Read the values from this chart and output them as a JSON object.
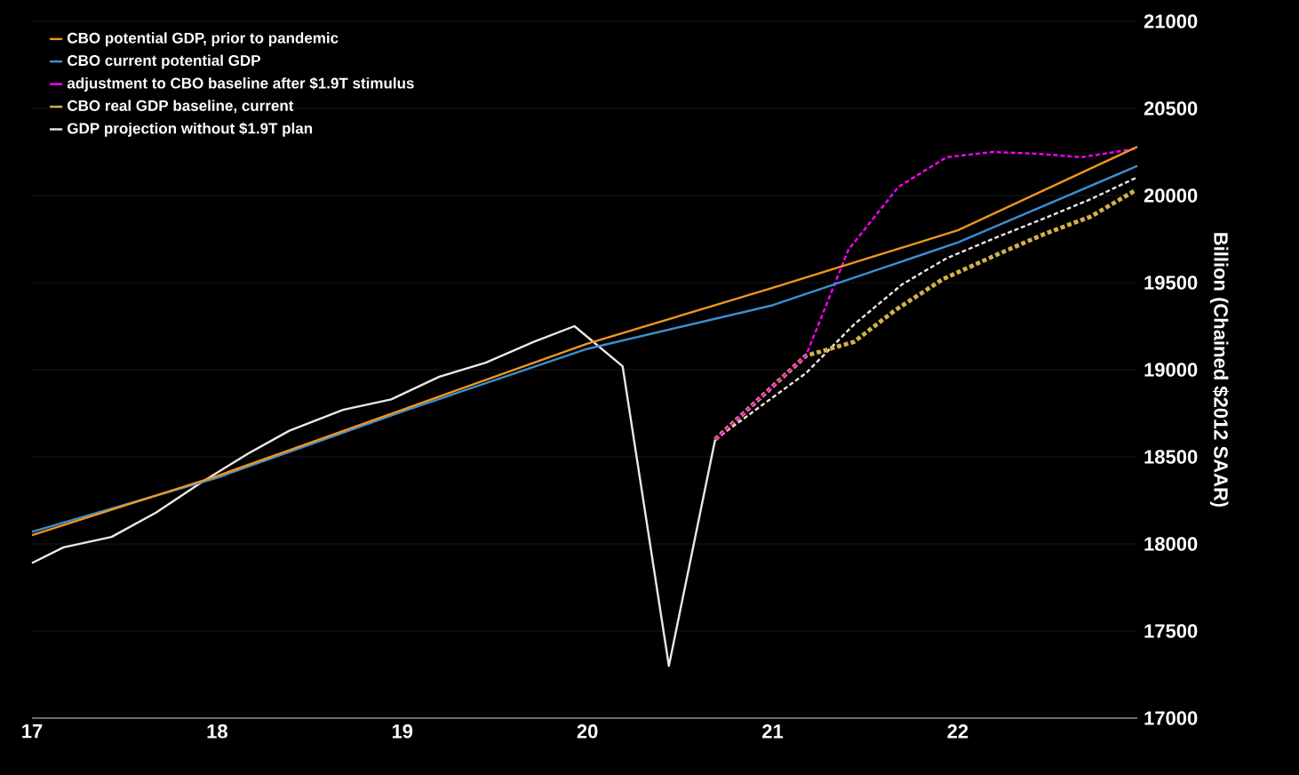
{
  "chart_data": {
    "type": "line",
    "ylabel": "Billion (Chained $2012 SAAR)",
    "xlim": [
      17,
      22.97
    ],
    "xticks": [
      17,
      18,
      19,
      20,
      21,
      22
    ],
    "ylim": [
      17000,
      21000
    ],
    "yticks": [
      17000,
      17500,
      18000,
      18500,
      19000,
      19500,
      20000,
      20500,
      21000
    ],
    "grid": "y",
    "legend": "top left",
    "line_style": "solid",
    "series": [
      {
        "name": "CBO potential GDP, prior to pandemic",
        "color": "#f0961e",
        "x": [
          17,
          18,
          19,
          20,
          21,
          22,
          22.97
        ],
        "values": [
          18050,
          18390,
          18770,
          19150,
          19470,
          19800,
          20280
        ]
      },
      {
        "name": "CBO current potential GDP",
        "color": "#3d8fd1",
        "x": [
          17,
          18,
          19,
          20,
          21,
          22,
          22.97
        ],
        "values": [
          18070,
          18380,
          18760,
          19120,
          19370,
          19730,
          20170
        ]
      },
      {
        "name": "adjustment to CBO baseline after $1.9T stimulus",
        "color": "#ff00ff",
        "line_style": "dashed",
        "x": [
          20.69,
          21.18,
          21.41,
          21.68,
          21.94,
          22.19,
          22.43,
          22.67,
          22.97
        ],
        "values": [
          18600,
          19080,
          19690,
          20050,
          20220,
          20250,
          20240,
          20220,
          20270
        ]
      },
      {
        "name": "CBO real GDP baseline, current",
        "color": "#d4b24c",
        "line_style": "dashed",
        "x": [
          20.69,
          21.18,
          21.44,
          21.66,
          21.92,
          22.21,
          22.47,
          22.72,
          22.96
        ],
        "values": [
          18600,
          19080,
          19160,
          19340,
          19520,
          19660,
          19780,
          19880,
          20030
        ]
      },
      {
        "name": "GDP projection without $1.9T plan",
        "color": "#f0e6e6",
        "line_style": "dashed",
        "x": [
          20.69,
          21.18,
          21.44,
          21.7,
          21.94,
          22.21,
          22.47,
          22.72,
          22.96
        ],
        "values": [
          18600,
          18980,
          19260,
          19490,
          19640,
          19760,
          19870,
          19980,
          20100
        ]
      },
      {
        "color": "#f0e6e6",
        "x": [
          17,
          17.17,
          17.43,
          17.67,
          17.91,
          18.17,
          18.39,
          18.68,
          18.94,
          19.2,
          19.45,
          19.71,
          19.93,
          20.19,
          20.44,
          20.69
        ],
        "values": [
          17890,
          17980,
          18040,
          18180,
          18350,
          18520,
          18650,
          18770,
          18830,
          18960,
          19040,
          19160,
          19250,
          19020,
          17300,
          18600
        ]
      }
    ]
  }
}
